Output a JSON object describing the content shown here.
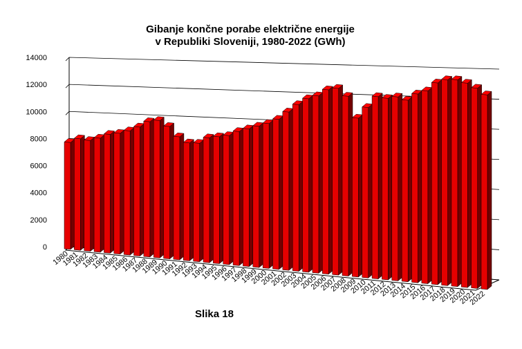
{
  "chart_data": {
    "type": "bar3d",
    "title": "Gibanje končne porabe električne energije",
    "subtitle": "v Republiki Sloveniji, 1980-2022 (GWh)",
    "note": "Slika 18",
    "categories": [
      "1980",
      "1981",
      "1982",
      "1983",
      "1984",
      "1985",
      "1986",
      "1987",
      "1988",
      "1989",
      "1990",
      "1991",
      "1992",
      "1993",
      "1994",
      "1995",
      "1996",
      "1997",
      "1998",
      "1999",
      "2000",
      "2001",
      "2002",
      "2003",
      "2004",
      "2005",
      "2006",
      "2007",
      "2008",
      "2009",
      "2010",
      "2011",
      "2012",
      "2013",
      "2014",
      "2015",
      "2016",
      "2017",
      "2018",
      "2019",
      "2020",
      "2021",
      "2022"
    ],
    "values": [
      7900,
      8200,
      8100,
      8300,
      8600,
      8700,
      8900,
      9200,
      9600,
      9700,
      9300,
      8600,
      8200,
      8200,
      8600,
      8700,
      8800,
      9100,
      9300,
      9500,
      9700,
      10000,
      10500,
      11000,
      11400,
      11600,
      12000,
      12100,
      11600,
      10200,
      10900,
      11600,
      11500,
      11600,
      11400,
      11800,
      12000,
      12500,
      12700,
      12700,
      12500,
      12200,
      11800
    ],
    "color": "#e60000",
    "ylim": [
      0,
      14000
    ],
    "yticks": [
      0,
      2000,
      4000,
      6000,
      8000,
      10000,
      12000,
      14000
    ],
    "grid": true
  }
}
